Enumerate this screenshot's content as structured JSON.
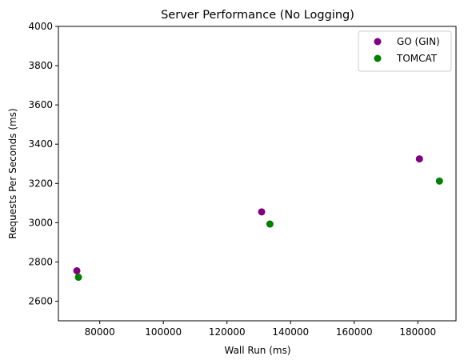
{
  "chart_data": {
    "type": "scatter",
    "title": "Server Performance (No Logging)",
    "xlabel": "Wall Run (ms)",
    "ylabel": "Requests Per Seconds (ms)",
    "xlim": [
      67000,
      192000
    ],
    "ylim": [
      2500,
      4000
    ],
    "xticks": [
      80000,
      100000,
      120000,
      140000,
      160000,
      180000
    ],
    "yticks": [
      2600,
      2800,
      3000,
      3200,
      3400,
      3600,
      3800,
      4000
    ],
    "grid": false,
    "legend_position": "top-right",
    "series": [
      {
        "name": "GO (GIN)",
        "color": "#800080",
        "points": [
          {
            "x": 72800,
            "y": 2755
          },
          {
            "x": 130900,
            "y": 3055
          },
          {
            "x": 180500,
            "y": 3325
          }
        ]
      },
      {
        "name": "TOMCAT",
        "color": "#008000",
        "points": [
          {
            "x": 73300,
            "y": 2722
          },
          {
            "x": 133500,
            "y": 2993
          },
          {
            "x": 186800,
            "y": 3212
          }
        ]
      }
    ]
  }
}
